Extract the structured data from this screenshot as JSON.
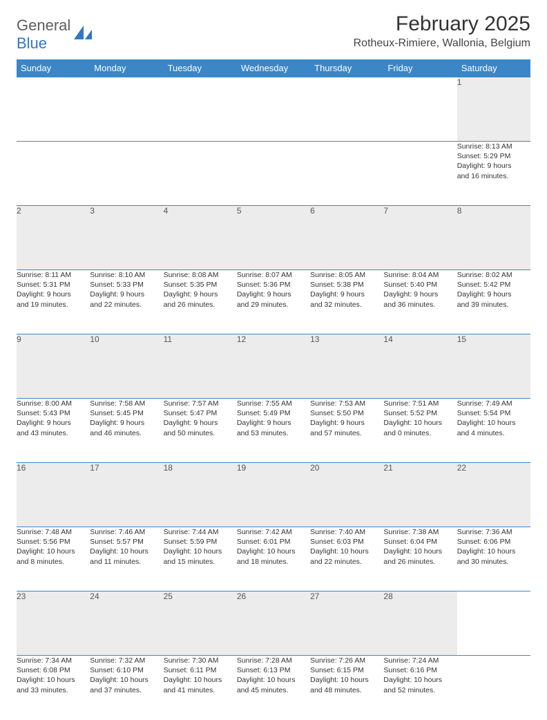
{
  "logo": {
    "text1": "General",
    "text2": "Blue"
  },
  "title": "February 2025",
  "location": "Rotheux-Rimiere, Wallonia, Belgium",
  "colors": {
    "header_bg": "#3b86c7",
    "header_text": "#ffffff",
    "daynum_bg": "#ececec",
    "border": "#3b86c7",
    "logo_gray": "#5c5c5c",
    "logo_blue": "#2f78c3",
    "page_bg": "#ffffff"
  },
  "weekdays": [
    "Sunday",
    "Monday",
    "Tuesday",
    "Wednesday",
    "Thursday",
    "Friday",
    "Saturday"
  ],
  "weeks": [
    [
      null,
      null,
      null,
      null,
      null,
      null,
      {
        "n": "1",
        "sr": "Sunrise: 8:13 AM",
        "ss": "Sunset: 5:29 PM",
        "dl1": "Daylight: 9 hours",
        "dl2": "and 16 minutes."
      }
    ],
    [
      {
        "n": "2",
        "sr": "Sunrise: 8:11 AM",
        "ss": "Sunset: 5:31 PM",
        "dl1": "Daylight: 9 hours",
        "dl2": "and 19 minutes."
      },
      {
        "n": "3",
        "sr": "Sunrise: 8:10 AM",
        "ss": "Sunset: 5:33 PM",
        "dl1": "Daylight: 9 hours",
        "dl2": "and 22 minutes."
      },
      {
        "n": "4",
        "sr": "Sunrise: 8:08 AM",
        "ss": "Sunset: 5:35 PM",
        "dl1": "Daylight: 9 hours",
        "dl2": "and 26 minutes."
      },
      {
        "n": "5",
        "sr": "Sunrise: 8:07 AM",
        "ss": "Sunset: 5:36 PM",
        "dl1": "Daylight: 9 hours",
        "dl2": "and 29 minutes."
      },
      {
        "n": "6",
        "sr": "Sunrise: 8:05 AM",
        "ss": "Sunset: 5:38 PM",
        "dl1": "Daylight: 9 hours",
        "dl2": "and 32 minutes."
      },
      {
        "n": "7",
        "sr": "Sunrise: 8:04 AM",
        "ss": "Sunset: 5:40 PM",
        "dl1": "Daylight: 9 hours",
        "dl2": "and 36 minutes."
      },
      {
        "n": "8",
        "sr": "Sunrise: 8:02 AM",
        "ss": "Sunset: 5:42 PM",
        "dl1": "Daylight: 9 hours",
        "dl2": "and 39 minutes."
      }
    ],
    [
      {
        "n": "9",
        "sr": "Sunrise: 8:00 AM",
        "ss": "Sunset: 5:43 PM",
        "dl1": "Daylight: 9 hours",
        "dl2": "and 43 minutes."
      },
      {
        "n": "10",
        "sr": "Sunrise: 7:58 AM",
        "ss": "Sunset: 5:45 PM",
        "dl1": "Daylight: 9 hours",
        "dl2": "and 46 minutes."
      },
      {
        "n": "11",
        "sr": "Sunrise: 7:57 AM",
        "ss": "Sunset: 5:47 PM",
        "dl1": "Daylight: 9 hours",
        "dl2": "and 50 minutes."
      },
      {
        "n": "12",
        "sr": "Sunrise: 7:55 AM",
        "ss": "Sunset: 5:49 PM",
        "dl1": "Daylight: 9 hours",
        "dl2": "and 53 minutes."
      },
      {
        "n": "13",
        "sr": "Sunrise: 7:53 AM",
        "ss": "Sunset: 5:50 PM",
        "dl1": "Daylight: 9 hours",
        "dl2": "and 57 minutes."
      },
      {
        "n": "14",
        "sr": "Sunrise: 7:51 AM",
        "ss": "Sunset: 5:52 PM",
        "dl1": "Daylight: 10 hours",
        "dl2": "and 0 minutes."
      },
      {
        "n": "15",
        "sr": "Sunrise: 7:49 AM",
        "ss": "Sunset: 5:54 PM",
        "dl1": "Daylight: 10 hours",
        "dl2": "and 4 minutes."
      }
    ],
    [
      {
        "n": "16",
        "sr": "Sunrise: 7:48 AM",
        "ss": "Sunset: 5:56 PM",
        "dl1": "Daylight: 10 hours",
        "dl2": "and 8 minutes."
      },
      {
        "n": "17",
        "sr": "Sunrise: 7:46 AM",
        "ss": "Sunset: 5:57 PM",
        "dl1": "Daylight: 10 hours",
        "dl2": "and 11 minutes."
      },
      {
        "n": "18",
        "sr": "Sunrise: 7:44 AM",
        "ss": "Sunset: 5:59 PM",
        "dl1": "Daylight: 10 hours",
        "dl2": "and 15 minutes."
      },
      {
        "n": "19",
        "sr": "Sunrise: 7:42 AM",
        "ss": "Sunset: 6:01 PM",
        "dl1": "Daylight: 10 hours",
        "dl2": "and 18 minutes."
      },
      {
        "n": "20",
        "sr": "Sunrise: 7:40 AM",
        "ss": "Sunset: 6:03 PM",
        "dl1": "Daylight: 10 hours",
        "dl2": "and 22 minutes."
      },
      {
        "n": "21",
        "sr": "Sunrise: 7:38 AM",
        "ss": "Sunset: 6:04 PM",
        "dl1": "Daylight: 10 hours",
        "dl2": "and 26 minutes."
      },
      {
        "n": "22",
        "sr": "Sunrise: 7:36 AM",
        "ss": "Sunset: 6:06 PM",
        "dl1": "Daylight: 10 hours",
        "dl2": "and 30 minutes."
      }
    ],
    [
      {
        "n": "23",
        "sr": "Sunrise: 7:34 AM",
        "ss": "Sunset: 6:08 PM",
        "dl1": "Daylight: 10 hours",
        "dl2": "and 33 minutes."
      },
      {
        "n": "24",
        "sr": "Sunrise: 7:32 AM",
        "ss": "Sunset: 6:10 PM",
        "dl1": "Daylight: 10 hours",
        "dl2": "and 37 minutes."
      },
      {
        "n": "25",
        "sr": "Sunrise: 7:30 AM",
        "ss": "Sunset: 6:11 PM",
        "dl1": "Daylight: 10 hours",
        "dl2": "and 41 minutes."
      },
      {
        "n": "26",
        "sr": "Sunrise: 7:28 AM",
        "ss": "Sunset: 6:13 PM",
        "dl1": "Daylight: 10 hours",
        "dl2": "and 45 minutes."
      },
      {
        "n": "27",
        "sr": "Sunrise: 7:26 AM",
        "ss": "Sunset: 6:15 PM",
        "dl1": "Daylight: 10 hours",
        "dl2": "and 48 minutes."
      },
      {
        "n": "28",
        "sr": "Sunrise: 7:24 AM",
        "ss": "Sunset: 6:16 PM",
        "dl1": "Daylight: 10 hours",
        "dl2": "and 52 minutes."
      },
      null
    ]
  ]
}
